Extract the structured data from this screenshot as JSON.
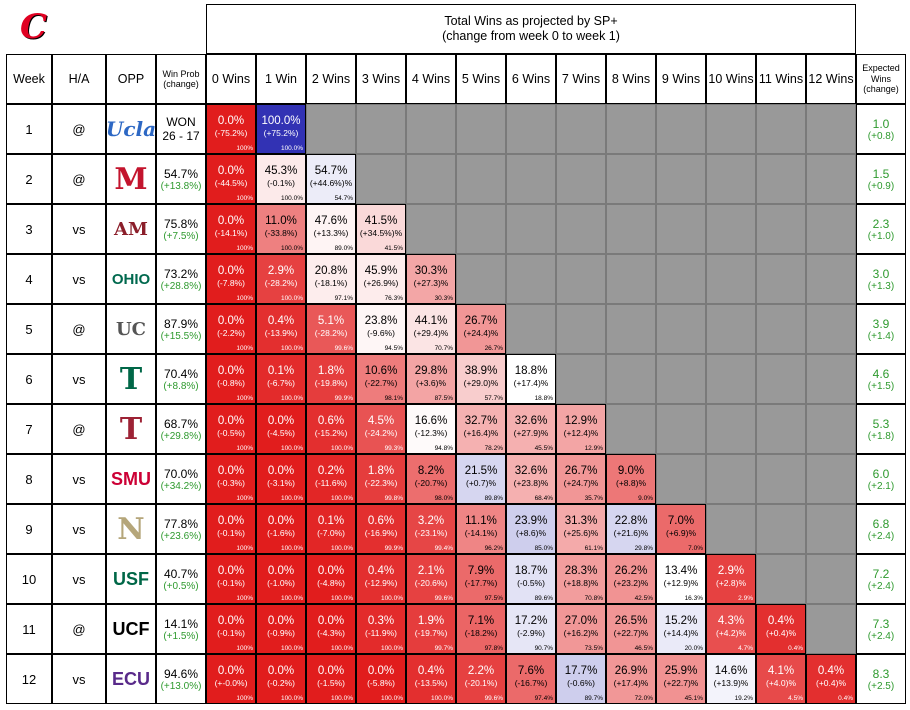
{
  "title_line1": "Total Wins as projected by SP+",
  "title_line2": "(change from week 0 to week 1)",
  "team_logo_letter": "C",
  "headers": {
    "week": "Week",
    "ha": "H/A",
    "opp": "OPP",
    "winprob": [
      "Win Prob",
      "(change)"
    ],
    "expected": [
      "Expected",
      "Wins",
      "(change)"
    ]
  },
  "win_columns": [
    "0 Wins",
    "1 Win",
    "2 Wins",
    "3 Wins",
    "4 Wins",
    "5 Wins",
    "6 Wins",
    "7 Wins",
    "8 Wins",
    "9 Wins",
    "10 Wins",
    "11 Wins",
    "12 Wins"
  ],
  "colors": {
    "red": "#e11d1d",
    "blue": "#3232b4",
    "white": "#ffffff",
    "na": "#999999",
    "green": "#2e9a2e"
  },
  "rows": [
    {
      "week": "1",
      "ha": "@",
      "opp": "UCLA",
      "opp_mark": "Ucla",
      "opp_color": "#2d68c4",
      "winprob": "WON",
      "winprob_change": "26 - 17",
      "wp_change_black": true,
      "expected": "1.0",
      "expected_change": "(+0.8)",
      "cells": [
        {
          "p": "0.0%",
          "c": "(-75.2%)",
          "cum": "100%",
          "f": 0.0
        },
        {
          "p": "100.0%",
          "c": "(+75.2%)",
          "cum": "100.0%",
          "f": 1.0
        }
      ]
    },
    {
      "week": "2",
      "ha": "@",
      "opp": "Miami (OH)",
      "opp_mark": "M",
      "opp_color": "#c3142d",
      "winprob": "54.7%",
      "winprob_change": "(+13.8%)",
      "expected": "1.5",
      "expected_change": "(+0.9)",
      "cells": [
        {
          "p": "0.0%",
          "c": "(-44.5%)",
          "cum": "100%",
          "f": 0.0
        },
        {
          "p": "45.3%",
          "c": "(-0.1%)",
          "cum": "100.0%",
          "f": 0.453
        },
        {
          "p": "54.7%",
          "c": "(+44.6%)%",
          "cum": "54.7%",
          "f": 0.547
        }
      ]
    },
    {
      "week": "3",
      "ha": "vs",
      "opp": "Alabama A&M",
      "opp_mark": "AM",
      "opp_color": "#8b1e2a",
      "winprob": "75.8%",
      "winprob_change": "(+7.5%)",
      "expected": "2.3",
      "expected_change": "(+1.0)",
      "cells": [
        {
          "p": "0.0%",
          "c": "(-14.1%)",
          "cum": "100%",
          "f": 0.0
        },
        {
          "p": "11.0%",
          "c": "(-33.8%)",
          "cum": "100.0%",
          "f": 0.22
        },
        {
          "p": "47.6%",
          "c": "(+13.3%)",
          "cum": "89.0%",
          "f": 0.476
        },
        {
          "p": "41.5%",
          "c": "(+34.5%)%",
          "cum": "41.5%",
          "f": 0.415
        }
      ]
    },
    {
      "week": "4",
      "ha": "vs",
      "opp": "Ohio",
      "opp_mark": "OHIO",
      "opp_color": "#00694e",
      "winprob": "73.2%",
      "winprob_change": "(+28.8%)",
      "expected": "3.0",
      "expected_change": "(+1.3)",
      "cells": [
        {
          "p": "0.0%",
          "c": "(-7.8%)",
          "cum": "100%",
          "f": 0.0
        },
        {
          "p": "2.9%",
          "c": "(-28.2%)",
          "cum": "100.0%",
          "f": 0.08
        },
        {
          "p": "20.8%",
          "c": "(-18.1%)",
          "cum": "97.1%",
          "f": 0.46
        },
        {
          "p": "45.9%",
          "c": "(+26.9%)",
          "cum": "76.3%",
          "f": 0.459
        },
        {
          "p": "30.3%",
          "c": "(+27.3)%",
          "cum": "30.3%",
          "f": 0.303
        }
      ]
    },
    {
      "week": "5",
      "ha": "@",
      "opp": "UConn",
      "opp_mark": "UC",
      "opp_color": "#555555",
      "winprob": "87.9%",
      "winprob_change": "(+15.5%)",
      "expected": "3.9",
      "expected_change": "(+1.4)",
      "cells": [
        {
          "p": "0.0%",
          "c": "(-2.2%)",
          "cum": "100%",
          "f": 0.0
        },
        {
          "p": "0.4%",
          "c": "(-13.9%)",
          "cum": "100.0%",
          "f": 0.04
        },
        {
          "p": "5.1%",
          "c": "(-28.2%)",
          "cum": "99.6%",
          "f": 0.13
        },
        {
          "p": "23.8%",
          "c": "(-9.6%)",
          "cum": "94.5%",
          "f": 0.48
        },
        {
          "p": "44.1%",
          "c": "(+29.4)%",
          "cum": "70.7%",
          "f": 0.441
        },
        {
          "p": "26.7%",
          "c": "(+24.4)%",
          "cum": "26.7%",
          "f": 0.267
        }
      ]
    },
    {
      "week": "6",
      "ha": "vs",
      "opp": "Tulane",
      "opp_mark": "T",
      "opp_color": "#006747",
      "winprob": "70.4%",
      "winprob_change": "(+8.8%)",
      "expected": "4.6",
      "expected_change": "(+1.5)",
      "cells": [
        {
          "p": "0.0%",
          "c": "(-0.8%)",
          "cum": "100%",
          "f": 0.0
        },
        {
          "p": "0.1%",
          "c": "(-6.7%)",
          "cum": "100.0%",
          "f": 0.03
        },
        {
          "p": "1.8%",
          "c": "(-19.8%)",
          "cum": "99.9%",
          "f": 0.07
        },
        {
          "p": "10.6%",
          "c": "(-22.7%)",
          "cum": "98.1%",
          "f": 0.21
        },
        {
          "p": "29.8%",
          "c": "(+3.6)%",
          "cum": "87.5%",
          "f": 0.298
        },
        {
          "p": "38.9%",
          "c": "(+29.0)%",
          "cum": "57.7%",
          "f": 0.389
        },
        {
          "p": "18.8%",
          "c": "(+17.4)%",
          "cum": "18.8%",
          "f": 0.5
        }
      ]
    },
    {
      "week": "7",
      "ha": "@",
      "opp": "Temple",
      "opp_mark": "T",
      "opp_color": "#9d2235",
      "winprob": "68.7%",
      "winprob_change": "(+29.8%)",
      "expected": "5.3",
      "expected_change": "(+1.8)",
      "cells": [
        {
          "p": "0.0%",
          "c": "(-0.5%)",
          "cum": "100%",
          "f": 0.0
        },
        {
          "p": "0.0%",
          "c": "(-4.5%)",
          "cum": "100.0%",
          "f": 0.0
        },
        {
          "p": "0.6%",
          "c": "(-15.2%)",
          "cum": "100.0%",
          "f": 0.04
        },
        {
          "p": "4.5%",
          "c": "(-24.2%)",
          "cum": "99.3%",
          "f": 0.12
        },
        {
          "p": "16.6%",
          "c": "(-12.3%)",
          "cum": "94.8%",
          "f": 0.49
        },
        {
          "p": "32.7%",
          "c": "(+16.4)%",
          "cum": "78.2%",
          "f": 0.327
        },
        {
          "p": "32.6%",
          "c": "(+27.9)%",
          "cum": "45.5%",
          "f": 0.326
        },
        {
          "p": "12.9%",
          "c": "(+12.4)%",
          "cum": "12.9%",
          "f": 0.3
        }
      ]
    },
    {
      "week": "8",
      "ha": "vs",
      "opp": "SMU",
      "opp_mark": "SMU",
      "opp_color": "#cc0035",
      "winprob": "70.0%",
      "winprob_change": "(+34.2%)",
      "expected": "6.0",
      "expected_change": "(+2.1)",
      "cells": [
        {
          "p": "0.0%",
          "c": "(-0.3%)",
          "cum": "100%",
          "f": 0.0
        },
        {
          "p": "0.0%",
          "c": "(-3.1%)",
          "cum": "100.0%",
          "f": 0.0
        },
        {
          "p": "0.2%",
          "c": "(-11.6%)",
          "cum": "100.0%",
          "f": 0.02
        },
        {
          "p": "1.8%",
          "c": "(-22.3%)",
          "cum": "99.8%",
          "f": 0.07
        },
        {
          "p": "8.2%",
          "c": "(-20.7%)",
          "cum": "98.0%",
          "f": 0.18
        },
        {
          "p": "21.5%",
          "c": "(+0.7)%",
          "cum": "89.8%",
          "f": 0.6
        },
        {
          "p": "32.6%",
          "c": "(+23.8)%",
          "cum": "68.4%",
          "f": 0.326
        },
        {
          "p": "26.7%",
          "c": "(+24.7)%",
          "cum": "35.7%",
          "f": 0.267
        },
        {
          "p": "9.0%",
          "c": "(+8.8)%",
          "cum": "9.0%",
          "f": 0.2
        }
      ]
    },
    {
      "week": "9",
      "ha": "vs",
      "opp": "Navy",
      "opp_mark": "N",
      "opp_color": "#b5a67a",
      "winprob": "77.8%",
      "winprob_change": "(+23.6%)",
      "expected": "6.8",
      "expected_change": "(+2.4)",
      "cells": [
        {
          "p": "0.0%",
          "c": "(-0.1%)",
          "cum": "100%",
          "f": 0.0
        },
        {
          "p": "0.0%",
          "c": "(-1.6%)",
          "cum": "100.0%",
          "f": 0.0
        },
        {
          "p": "0.1%",
          "c": "(-7.0%)",
          "cum": "100.0%",
          "f": 0.02
        },
        {
          "p": "0.6%",
          "c": "(-16.9%)",
          "cum": "99.9%",
          "f": 0.04
        },
        {
          "p": "3.2%",
          "c": "(-23.1%)",
          "cum": "99.4%",
          "f": 0.09
        },
        {
          "p": "11.1%",
          "c": "(-14.1%)",
          "cum": "96.2%",
          "f": 0.23
        },
        {
          "p": "23.9%",
          "c": "(+8.6)%",
          "cum": "85.0%",
          "f": 0.62
        },
        {
          "p": "31.3%",
          "c": "(+25.6)%",
          "cum": "61.1%",
          "f": 0.313
        },
        {
          "p": "22.8%",
          "c": "(+21.6)%",
          "cum": "29.8%",
          "f": 0.6
        },
        {
          "p": "7.0%",
          "c": "(+6.9)%",
          "cum": "7.0%",
          "f": 0.17
        }
      ]
    },
    {
      "week": "10",
      "ha": "vs",
      "opp": "South Florida",
      "opp_mark": "USF",
      "opp_color": "#006747",
      "winprob": "40.7%",
      "winprob_change": "(+0.5%)",
      "expected": "7.2",
      "expected_change": "(+2.4)",
      "cells": [
        {
          "p": "0.0%",
          "c": "(-0.1%)",
          "cum": "100%",
          "f": 0.0
        },
        {
          "p": "0.0%",
          "c": "(-1.0%)",
          "cum": "100.0%",
          "f": 0.0
        },
        {
          "p": "0.0%",
          "c": "(-4.8%)",
          "cum": "100.0%",
          "f": 0.0
        },
        {
          "p": "0.4%",
          "c": "(-12.9%)",
          "cum": "100.0%",
          "f": 0.04
        },
        {
          "p": "2.1%",
          "c": "(-20.6%)",
          "cum": "99.6%",
          "f": 0.08
        },
        {
          "p": "7.9%",
          "c": "(-17.7%)",
          "cum": "97.5%",
          "f": 0.17
        },
        {
          "p": "18.7%",
          "c": "(-0.5%)",
          "cum": "89.6%",
          "f": 0.57
        },
        {
          "p": "28.3%",
          "c": "(+18.8)%",
          "cum": "70.8%",
          "f": 0.283
        },
        {
          "p": "26.2%",
          "c": "(+23.2)%",
          "cum": "42.5%",
          "f": 0.262
        },
        {
          "p": "13.4%",
          "c": "(+12.9)%",
          "cum": "16.3%",
          "f": 0.5
        },
        {
          "p": "2.9%",
          "c": "(+2.8)%",
          "cum": "2.9%",
          "f": 0.08
        }
      ]
    },
    {
      "week": "11",
      "ha": "@",
      "opp": "UCF",
      "opp_mark": "UCF",
      "opp_color": "#000000",
      "winprob": "14.1%",
      "winprob_change": "(+1.5%)",
      "expected": "7.3",
      "expected_change": "(+2.4)",
      "cells": [
        {
          "p": "0.0%",
          "c": "(-0.1%)",
          "cum": "100%",
          "f": 0.0
        },
        {
          "p": "0.0%",
          "c": "(-0.9%)",
          "cum": "100.0%",
          "f": 0.0
        },
        {
          "p": "0.0%",
          "c": "(-4.3%)",
          "cum": "100.0%",
          "f": 0.0
        },
        {
          "p": "0.3%",
          "c": "(-11.9%)",
          "cum": "100.0%",
          "f": 0.03
        },
        {
          "p": "1.9%",
          "c": "(-19.7%)",
          "cum": "99.7%",
          "f": 0.07
        },
        {
          "p": "7.1%",
          "c": "(-18.2%)",
          "cum": "97.8%",
          "f": 0.16
        },
        {
          "p": "17.2%",
          "c": "(-2.9%)",
          "cum": "90.7%",
          "f": 0.56
        },
        {
          "p": "27.0%",
          "c": "(+16.2)%",
          "cum": "73.5%",
          "f": 0.27
        },
        {
          "p": "26.5%",
          "c": "(+22.7)%",
          "cum": "46.5%",
          "f": 0.265
        },
        {
          "p": "15.2%",
          "c": "(+14.4)%",
          "cum": "20.0%",
          "f": 0.55
        },
        {
          "p": "4.3%",
          "c": "(+4.2)%",
          "cum": "4.7%",
          "f": 0.11
        },
        {
          "p": "0.4%",
          "c": "(+0.4)%",
          "cum": "0.4%",
          "f": 0.04
        }
      ]
    },
    {
      "week": "12",
      "ha": "vs",
      "opp": "East Carolina",
      "opp_mark": "ECU",
      "opp_color": "#592a8a",
      "winprob": "94.6%",
      "winprob_change": "(+13.0%)",
      "expected": "8.3",
      "expected_change": "(+2.5)",
      "cells": [
        {
          "p": "0.0%",
          "c": "(+-0.0%)",
          "cum": "100%",
          "f": 0.0
        },
        {
          "p": "0.0%",
          "c": "(-0.2%)",
          "cum": "100.0%",
          "f": 0.0
        },
        {
          "p": "0.0%",
          "c": "(-1.5%)",
          "cum": "100.0%",
          "f": 0.0
        },
        {
          "p": "0.0%",
          "c": "(-5.8%)",
          "cum": "100.0%",
          "f": 0.0
        },
        {
          "p": "0.4%",
          "c": "(-13.5%)",
          "cum": "100.0%",
          "f": 0.04
        },
        {
          "p": "2.2%",
          "c": "(-20.1%)",
          "cum": "99.6%",
          "f": 0.08
        },
        {
          "p": "7.6%",
          "c": "(-16.7%)",
          "cum": "97.4%",
          "f": 0.17
        },
        {
          "p": "17.7%",
          "c": "(-0.6%)",
          "cum": "89.7%",
          "f": 0.62
        },
        {
          "p": "26.9%",
          "c": "(+17.4)%",
          "cum": "72.0%",
          "f": 0.269
        },
        {
          "p": "25.9%",
          "c": "(+22.7)%",
          "cum": "45.1%",
          "f": 0.259
        },
        {
          "p": "14.6%",
          "c": "(+13.9)%",
          "cum": "19.2%",
          "f": 0.53
        },
        {
          "p": "4.1%",
          "c": "(+4.0)%",
          "cum": "4.5%",
          "f": 0.1
        },
        {
          "p": "0.4%",
          "c": "(+0.4)%",
          "cum": "0.4%",
          "f": 0.04
        }
      ]
    }
  ],
  "chart_data": {
    "type": "heatmap",
    "title": "Total Wins as projected by SP+ (change from week 0 to week 1)",
    "x_categories": [
      "0 Wins",
      "1 Win",
      "2 Wins",
      "3 Wins",
      "4 Wins",
      "5 Wins",
      "6 Wins",
      "7 Wins",
      "8 Wins",
      "9 Wins",
      "10 Wins",
      "11 Wins",
      "12 Wins"
    ],
    "y_categories": [
      "1",
      "2",
      "3",
      "4",
      "5",
      "6",
      "7",
      "8",
      "9",
      "10",
      "11",
      "12"
    ],
    "note": "Cell values: probability of finishing with N wins after each week; shown in rows[].cells"
  }
}
